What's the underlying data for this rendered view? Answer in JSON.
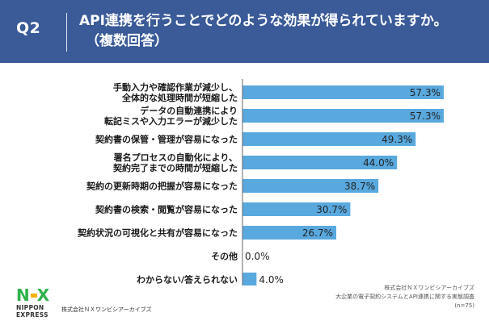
{
  "header": {
    "q_label": "Q2",
    "question_line1": "API連携を行うことでどのような効果が得られていますか。",
    "question_line2": "（複数回答）"
  },
  "colors": {
    "header_bg": "#3a5a98",
    "bar": "#59a9df",
    "label_text": "#1a1a1a",
    "logo_green": "#2fb24c",
    "logo_yellow": "#f3b400"
  },
  "chart_data": {
    "type": "bar",
    "orientation": "horizontal",
    "categories": [
      [
        "手動入力や確認作業が減少し、",
        "全体的な処理時間が短縮した"
      ],
      [
        "データの自動連携により",
        "転記ミスや入力エラーが減少した"
      ],
      [
        "契約書の保管・管理が容易になった"
      ],
      [
        "署名プロセスの自動化により、",
        "契約完了までの時間が短縮した"
      ],
      [
        "契約の更新時期の把握が容易になった"
      ],
      [
        "契約書の検索・閲覧が容易になった"
      ],
      [
        "契約状況の可視化と共有が容易になった"
      ],
      [
        "その他"
      ],
      [
        "わからない/答えられない"
      ]
    ],
    "values": [
      57.3,
      57.3,
      49.3,
      44.0,
      38.7,
      30.7,
      26.7,
      0.0,
      4.0
    ],
    "value_labels": [
      "57.3%",
      "57.3%",
      "49.3%",
      "44.0%",
      "38.7%",
      "30.7%",
      "26.7%",
      "0.0%",
      "4.0%"
    ],
    "xlim": [
      0,
      57.3
    ],
    "grid": false,
    "legend": "none"
  },
  "footer": {
    "logo_mark_n": "N",
    "logo_mark_x": "X",
    "logo_line1": "NIPPON",
    "logo_line2": "EXPRESS",
    "company": "株式会社ＮＸワンビシアーカイブズ",
    "source_line1": "株式会社ＮＸワンビシアーカイブズ",
    "source_line2": "大企業の電子契約システムとAPI連携に関する実態調査",
    "source_line3": "(n=75)"
  }
}
